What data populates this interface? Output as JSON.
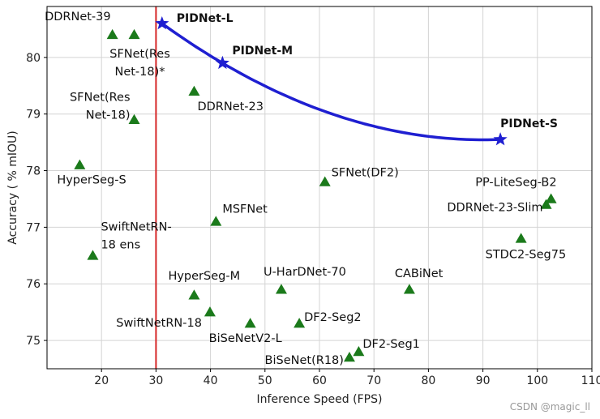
{
  "chart_data": {
    "type": "scatter",
    "xlabel": "Inference Speed (FPS)",
    "ylabel": "Accuracy ( % mIOU)",
    "xlim": [
      10,
      110
    ],
    "ylim": [
      74.5,
      80.9
    ],
    "xticks": [
      "20",
      "30",
      "40",
      "50",
      "60",
      "70",
      "80",
      "90",
      "100",
      "110"
    ],
    "yticks": [
      "75",
      "76",
      "77",
      "78",
      "79",
      "80"
    ],
    "grid": true,
    "reference_line": {
      "x": 30,
      "color": "#d62728"
    },
    "others": [
      {
        "label": "DDRNet-39",
        "x": 22,
        "y": 80.4
      },
      {
        "label": "SFNet(ResNet-18)*",
        "lines": [
          "SFNet(Res",
          "Net-18)*"
        ],
        "x": 26,
        "y": 80.4
      },
      {
        "label": "DDRNet-23",
        "x": 37,
        "y": 79.4
      },
      {
        "label": "SFNet(ResNet-18)",
        "lines": [
          "SFNet(Res",
          "Net-18)"
        ],
        "x": 26,
        "y": 78.9
      },
      {
        "label": "HyperSeg-S",
        "x": 16,
        "y": 78.1
      },
      {
        "label": "SFNet(DF2)",
        "x": 61,
        "y": 77.8
      },
      {
        "label": "PP-LiteSeg-B2",
        "x": 102.5,
        "y": 77.5
      },
      {
        "label": "DDRNet-23-Slim",
        "x": 101.6,
        "y": 77.4
      },
      {
        "label": "MSFNet",
        "x": 41,
        "y": 77.1
      },
      {
        "label": "SwiftNetRN-18 ens",
        "lines": [
          "SwiftNetRN-",
          "18 ens"
        ],
        "x": 18.4,
        "y": 76.5
      },
      {
        "label": "STDC2-Seg75",
        "x": 97,
        "y": 76.8
      },
      {
        "label": "HyperSeg-M",
        "x": 37,
        "y": 75.8
      },
      {
        "label": "U-HarDNet-70",
        "x": 53,
        "y": 75.9
      },
      {
        "label": "CABiNet",
        "x": 76.5,
        "y": 75.9
      },
      {
        "label": "SwiftNetRN-18",
        "x": 39.9,
        "y": 75.5
      },
      {
        "label": "BiSeNetV2-L",
        "x": 47.3,
        "y": 75.3
      },
      {
        "label": "DF2-Seg2",
        "x": 56.3,
        "y": 75.3
      },
      {
        "label": "DF2-Seg1",
        "x": 67.2,
        "y": 74.8
      },
      {
        "label": "BiSeNet(R18)",
        "x": 65.5,
        "y": 74.7
      }
    ],
    "pidnet": [
      {
        "label": "PIDNet-L",
        "x": 31.1,
        "y": 80.6
      },
      {
        "label": "PIDNet-M",
        "x": 42.2,
        "y": 79.9
      },
      {
        "label": "PIDNet-S",
        "x": 93.2,
        "y": 78.55
      }
    ],
    "colors": {
      "others": "#1b7a1b",
      "pidnet": "#1f1fd1",
      "line": "#d62728"
    }
  },
  "watermark": "CSDN @magic_ll"
}
